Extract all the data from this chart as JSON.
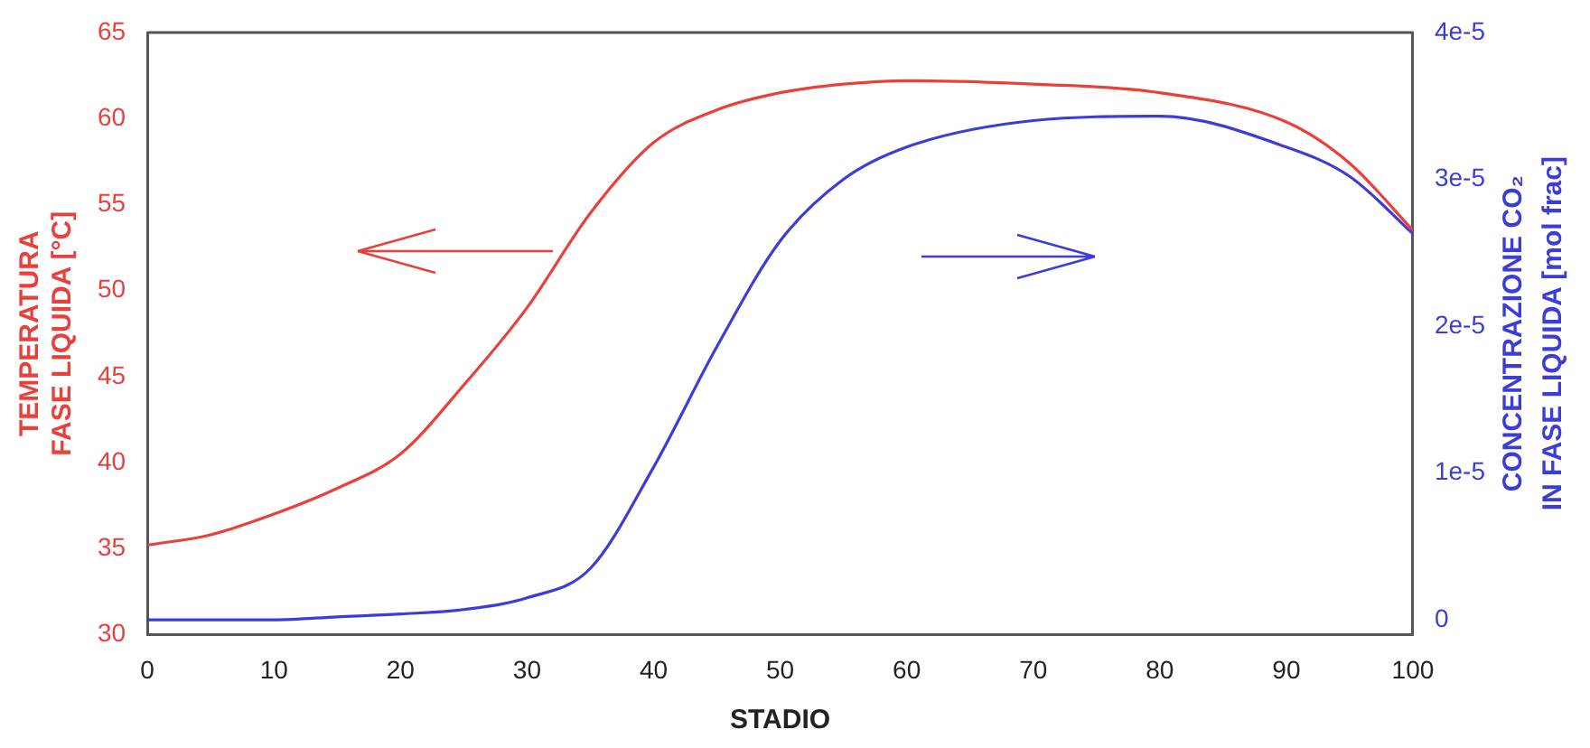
{
  "chart_data": {
    "type": "line",
    "xlabel": "STADIO",
    "ylabel": "TEMPERATURA\nFASE LIQUIDA [°C]",
    "y2label": "CONCENTRAZIONE CO₂\nIN FASE LIQUIDA [mol frac]",
    "x": [
      0,
      5,
      10,
      15,
      20,
      25,
      30,
      35,
      40,
      45,
      50,
      55,
      60,
      70,
      80,
      90,
      95,
      100
    ],
    "series": [
      {
        "color": "#e8413c",
        "values": [
          35.2,
          35.8,
          37,
          38.5,
          40.5,
          44.5,
          49,
          54.5,
          58.6,
          60.5,
          61.5,
          62,
          62.2,
          62,
          61.5,
          59.8,
          57.4,
          53.5
        ]
      },
      {
        "color": "#3c3cd8",
        "axis": "y2",
        "values": [
          0,
          0,
          0,
          2e-07,
          4e-07,
          7e-07,
          1.5e-06,
          3.5e-06,
          1.04e-05,
          1.86e-05,
          2.58e-05,
          3e-05,
          3.22e-05,
          3.4e-05,
          3.43e-05,
          3.22e-05,
          3.02e-05,
          2.63e-05
        ]
      }
    ],
    "xlim": [
      0,
      100
    ],
    "xticks": [
      0,
      10,
      20,
      30,
      40,
      50,
      60,
      70,
      80,
      90,
      100
    ],
    "ylim": [
      30,
      65
    ],
    "yticks": [
      30,
      35,
      40,
      45,
      50,
      55,
      60,
      65
    ],
    "y2lim": [
      -1e-06,
      4e-05
    ],
    "y2ticks": [
      {
        "value": 0,
        "label": "0"
      },
      {
        "value": 1e-05,
        "label": "1e-5"
      },
      {
        "value": 2e-05,
        "label": "2e-5"
      },
      {
        "value": 3e-05,
        "label": "3e-5"
      },
      {
        "value": 4e-05,
        "label": "4e-5"
      }
    ],
    "grid": false,
    "legend": false,
    "marker": "none",
    "line_style": "solid"
  }
}
